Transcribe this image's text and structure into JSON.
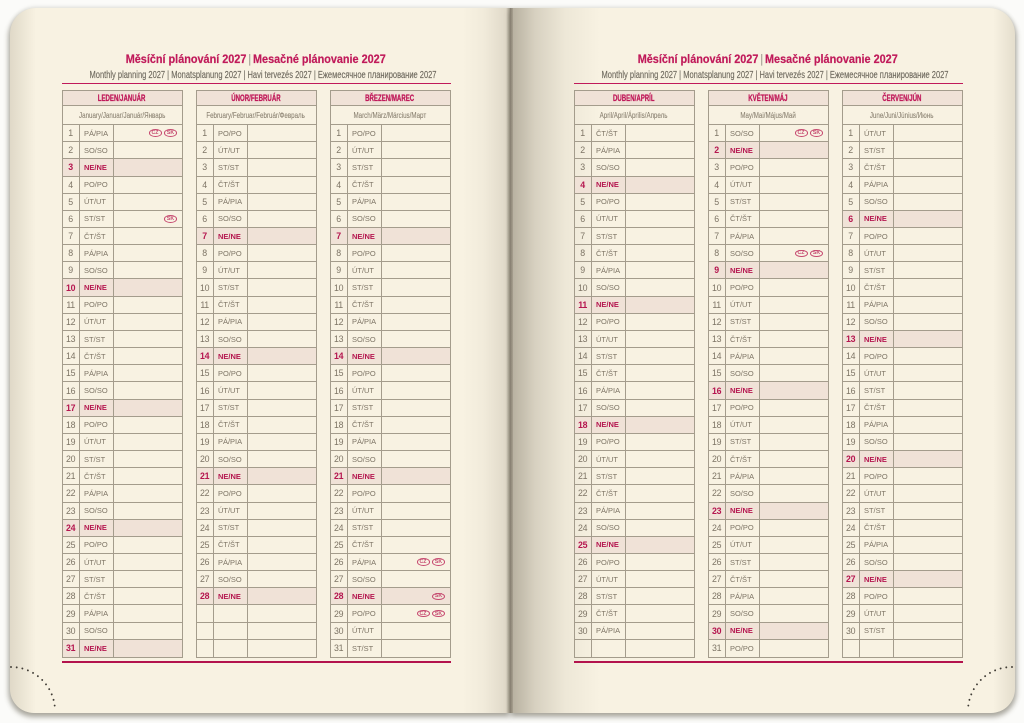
{
  "header": {
    "title_cs": "Měsíční plánování 2027",
    "title_sep": "|",
    "title_sk": "Mesačné plánovanie 2027",
    "subtitle": "Monthly planning 2027 | Monatsplanung 2027 | Havi tervezés 2027 | Ежемесячное планирование 2027"
  },
  "colors": {
    "accent_magenta": "#c01a5a",
    "sunday_red": "#b5164f",
    "page_cream": "#f8f2e2",
    "row_highlight": "#f0e2d7",
    "text_gray": "#7d7465",
    "border_gray": "#a49c8c",
    "badge_pink": "#c64a70",
    "dot_dark": "#413d36"
  },
  "months": [
    {
      "name": "LEDEN/JANUÁR",
      "subtitle": "January/Januar/Január/Январь",
      "days": [
        {
          "n": "1",
          "w": "PÁ/PIA",
          "badges": [
            "CZ",
            "SK"
          ]
        },
        {
          "n": "2",
          "w": "SO/SO"
        },
        {
          "n": "3",
          "w": "NE/NE",
          "sun": true
        },
        {
          "n": "4",
          "w": "PO/PO"
        },
        {
          "n": "5",
          "w": "ÚT/UT"
        },
        {
          "n": "6",
          "w": "ST/ST",
          "badges": [
            "SK"
          ]
        },
        {
          "n": "7",
          "w": "ČT/ŠT"
        },
        {
          "n": "8",
          "w": "PÁ/PIA"
        },
        {
          "n": "9",
          "w": "SO/SO"
        },
        {
          "n": "10",
          "w": "NE/NE",
          "sun": true
        },
        {
          "n": "11",
          "w": "PO/PO"
        },
        {
          "n": "12",
          "w": "ÚT/UT"
        },
        {
          "n": "13",
          "w": "ST/ST"
        },
        {
          "n": "14",
          "w": "ČT/ŠT"
        },
        {
          "n": "15",
          "w": "PÁ/PIA"
        },
        {
          "n": "16",
          "w": "SO/SO"
        },
        {
          "n": "17",
          "w": "NE/NE",
          "sun": true
        },
        {
          "n": "18",
          "w": "PO/PO"
        },
        {
          "n": "19",
          "w": "ÚT/UT"
        },
        {
          "n": "20",
          "w": "ST/ST"
        },
        {
          "n": "21",
          "w": "ČT/ŠT"
        },
        {
          "n": "22",
          "w": "PÁ/PIA"
        },
        {
          "n": "23",
          "w": "SO/SO"
        },
        {
          "n": "24",
          "w": "NE/NE",
          "sun": true
        },
        {
          "n": "25",
          "w": "PO/PO"
        },
        {
          "n": "26",
          "w": "ÚT/UT"
        },
        {
          "n": "27",
          "w": "ST/ST"
        },
        {
          "n": "28",
          "w": "ČT/ŠT"
        },
        {
          "n": "29",
          "w": "PÁ/PIA"
        },
        {
          "n": "30",
          "w": "SO/SO"
        },
        {
          "n": "31",
          "w": "NE/NE",
          "sun": true
        }
      ]
    },
    {
      "name": "ÚNOR/FEBRUÁR",
      "subtitle": "February/Februar/Február/Февраль",
      "days": [
        {
          "n": "1",
          "w": "PO/PO"
        },
        {
          "n": "2",
          "w": "ÚT/UT"
        },
        {
          "n": "3",
          "w": "ST/ST"
        },
        {
          "n": "4",
          "w": "ČT/ŠT"
        },
        {
          "n": "5",
          "w": "PÁ/PIA"
        },
        {
          "n": "6",
          "w": "SO/SO"
        },
        {
          "n": "7",
          "w": "NE/NE",
          "sun": true
        },
        {
          "n": "8",
          "w": "PO/PO"
        },
        {
          "n": "9",
          "w": "ÚT/UT"
        },
        {
          "n": "10",
          "w": "ST/ST"
        },
        {
          "n": "11",
          "w": "ČT/ŠT"
        },
        {
          "n": "12",
          "w": "PÁ/PIA"
        },
        {
          "n": "13",
          "w": "SO/SO"
        },
        {
          "n": "14",
          "w": "NE/NE",
          "sun": true
        },
        {
          "n": "15",
          "w": "PO/PO"
        },
        {
          "n": "16",
          "w": "ÚT/UT"
        },
        {
          "n": "17",
          "w": "ST/ST"
        },
        {
          "n": "18",
          "w": "ČT/ŠT"
        },
        {
          "n": "19",
          "w": "PÁ/PIA"
        },
        {
          "n": "20",
          "w": "SO/SO"
        },
        {
          "n": "21",
          "w": "NE/NE",
          "sun": true
        },
        {
          "n": "22",
          "w": "PO/PO"
        },
        {
          "n": "23",
          "w": "ÚT/UT"
        },
        {
          "n": "24",
          "w": "ST/ST"
        },
        {
          "n": "25",
          "w": "ČT/ŠT"
        },
        {
          "n": "26",
          "w": "PÁ/PIA"
        },
        {
          "n": "27",
          "w": "SO/SO"
        },
        {
          "n": "28",
          "w": "NE/NE",
          "sun": true
        },
        {
          "n": "",
          "w": ""
        },
        {
          "n": "",
          "w": ""
        },
        {
          "n": "",
          "w": ""
        }
      ]
    },
    {
      "name": "BŘEZEN/MAREC",
      "subtitle": "March/März/Március/Март",
      "days": [
        {
          "n": "1",
          "w": "PO/PO"
        },
        {
          "n": "2",
          "w": "ÚT/UT"
        },
        {
          "n": "3",
          "w": "ST/ST"
        },
        {
          "n": "4",
          "w": "ČT/ŠT"
        },
        {
          "n": "5",
          "w": "PÁ/PIA"
        },
        {
          "n": "6",
          "w": "SO/SO"
        },
        {
          "n": "7",
          "w": "NE/NE",
          "sun": true
        },
        {
          "n": "8",
          "w": "PO/PO"
        },
        {
          "n": "9",
          "w": "ÚT/UT"
        },
        {
          "n": "10",
          "w": "ST/ST"
        },
        {
          "n": "11",
          "w": "ČT/ŠT"
        },
        {
          "n": "12",
          "w": "PÁ/PIA"
        },
        {
          "n": "13",
          "w": "SO/SO"
        },
        {
          "n": "14",
          "w": "NE/NE",
          "sun": true
        },
        {
          "n": "15",
          "w": "PO/PO"
        },
        {
          "n": "16",
          "w": "ÚT/UT"
        },
        {
          "n": "17",
          "w": "ST/ST"
        },
        {
          "n": "18",
          "w": "ČT/ŠT"
        },
        {
          "n": "19",
          "w": "PÁ/PIA"
        },
        {
          "n": "20",
          "w": "SO/SO"
        },
        {
          "n": "21",
          "w": "NE/NE",
          "sun": true
        },
        {
          "n": "22",
          "w": "PO/PO"
        },
        {
          "n": "23",
          "w": "ÚT/UT"
        },
        {
          "n": "24",
          "w": "ST/ST"
        },
        {
          "n": "25",
          "w": "ČT/ŠT"
        },
        {
          "n": "26",
          "w": "PÁ/PIA",
          "badges": [
            "CZ",
            "SK"
          ]
        },
        {
          "n": "27",
          "w": "SO/SO"
        },
        {
          "n": "28",
          "w": "NE/NE",
          "sun": true,
          "badges": [
            "SK"
          ]
        },
        {
          "n": "29",
          "w": "PO/PO",
          "badges": [
            "CZ",
            "SK"
          ]
        },
        {
          "n": "30",
          "w": "ÚT/UT"
        },
        {
          "n": "31",
          "w": "ST/ST"
        }
      ]
    },
    {
      "name": "DUBEN/APRÍL",
      "subtitle": "April/April/Április/Апрель",
      "days": [
        {
          "n": "1",
          "w": "ČT/ŠT"
        },
        {
          "n": "2",
          "w": "PÁ/PIA"
        },
        {
          "n": "3",
          "w": "SO/SO"
        },
        {
          "n": "4",
          "w": "NE/NE",
          "sun": true
        },
        {
          "n": "5",
          "w": "PO/PO"
        },
        {
          "n": "6",
          "w": "ÚT/UT"
        },
        {
          "n": "7",
          "w": "ST/ST"
        },
        {
          "n": "8",
          "w": "ČT/ŠT"
        },
        {
          "n": "9",
          "w": "PÁ/PIA"
        },
        {
          "n": "10",
          "w": "SO/SO"
        },
        {
          "n": "11",
          "w": "NE/NE",
          "sun": true
        },
        {
          "n": "12",
          "w": "PO/PO"
        },
        {
          "n": "13",
          "w": "ÚT/UT"
        },
        {
          "n": "14",
          "w": "ST/ST"
        },
        {
          "n": "15",
          "w": "ČT/ŠT"
        },
        {
          "n": "16",
          "w": "PÁ/PIA"
        },
        {
          "n": "17",
          "w": "SO/SO"
        },
        {
          "n": "18",
          "w": "NE/NE",
          "sun": true
        },
        {
          "n": "19",
          "w": "PO/PO"
        },
        {
          "n": "20",
          "w": "ÚT/UT"
        },
        {
          "n": "21",
          "w": "ST/ST"
        },
        {
          "n": "22",
          "w": "ČT/ŠT"
        },
        {
          "n": "23",
          "w": "PÁ/PIA"
        },
        {
          "n": "24",
          "w": "SO/SO"
        },
        {
          "n": "25",
          "w": "NE/NE",
          "sun": true
        },
        {
          "n": "26",
          "w": "PO/PO"
        },
        {
          "n": "27",
          "w": "ÚT/UT"
        },
        {
          "n": "28",
          "w": "ST/ST"
        },
        {
          "n": "29",
          "w": "ČT/ŠT"
        },
        {
          "n": "30",
          "w": "PÁ/PIA"
        },
        {
          "n": "",
          "w": ""
        }
      ]
    },
    {
      "name": "KVĚTEN/MÁJ",
      "subtitle": "May/Mai/Május/Май",
      "days": [
        {
          "n": "1",
          "w": "SO/SO",
          "badges": [
            "CZ",
            "SK"
          ]
        },
        {
          "n": "2",
          "w": "NE/NE",
          "sun": true
        },
        {
          "n": "3",
          "w": "PO/PO"
        },
        {
          "n": "4",
          "w": "ÚT/UT"
        },
        {
          "n": "5",
          "w": "ST/ST"
        },
        {
          "n": "6",
          "w": "ČT/ŠT"
        },
        {
          "n": "7",
          "w": "PÁ/PIA"
        },
        {
          "n": "8",
          "w": "SO/SO",
          "badges": [
            "CZ",
            "SK"
          ]
        },
        {
          "n": "9",
          "w": "NE/NE",
          "sun": true
        },
        {
          "n": "10",
          "w": "PO/PO"
        },
        {
          "n": "11",
          "w": "ÚT/UT"
        },
        {
          "n": "12",
          "w": "ST/ST"
        },
        {
          "n": "13",
          "w": "ČT/ŠT"
        },
        {
          "n": "14",
          "w": "PÁ/PIA"
        },
        {
          "n": "15",
          "w": "SO/SO"
        },
        {
          "n": "16",
          "w": "NE/NE",
          "sun": true
        },
        {
          "n": "17",
          "w": "PO/PO"
        },
        {
          "n": "18",
          "w": "ÚT/UT"
        },
        {
          "n": "19",
          "w": "ST/ST"
        },
        {
          "n": "20",
          "w": "ČT/ŠT"
        },
        {
          "n": "21",
          "w": "PÁ/PIA"
        },
        {
          "n": "22",
          "w": "SO/SO"
        },
        {
          "n": "23",
          "w": "NE/NE",
          "sun": true
        },
        {
          "n": "24",
          "w": "PO/PO"
        },
        {
          "n": "25",
          "w": "ÚT/UT"
        },
        {
          "n": "26",
          "w": "ST/ST"
        },
        {
          "n": "27",
          "w": "ČT/ŠT"
        },
        {
          "n": "28",
          "w": "PÁ/PIA"
        },
        {
          "n": "29",
          "w": "SO/SO"
        },
        {
          "n": "30",
          "w": "NE/NE",
          "sun": true
        },
        {
          "n": "31",
          "w": "PO/PO"
        }
      ]
    },
    {
      "name": "ČERVEN/JÚN",
      "subtitle": "June/Juni/Június/Июнь",
      "days": [
        {
          "n": "1",
          "w": "ÚT/UT"
        },
        {
          "n": "2",
          "w": "ST/ST"
        },
        {
          "n": "3",
          "w": "ČT/ŠT"
        },
        {
          "n": "4",
          "w": "PÁ/PIA"
        },
        {
          "n": "5",
          "w": "SO/SO"
        },
        {
          "n": "6",
          "w": "NE/NE",
          "sun": true
        },
        {
          "n": "7",
          "w": "PO/PO"
        },
        {
          "n": "8",
          "w": "ÚT/UT"
        },
        {
          "n": "9",
          "w": "ST/ST"
        },
        {
          "n": "10",
          "w": "ČT/ŠT"
        },
        {
          "n": "11",
          "w": "PÁ/PIA"
        },
        {
          "n": "12",
          "w": "SO/SO"
        },
        {
          "n": "13",
          "w": "NE/NE",
          "sun": true
        },
        {
          "n": "14",
          "w": "PO/PO"
        },
        {
          "n": "15",
          "w": "ÚT/UT"
        },
        {
          "n": "16",
          "w": "ST/ST"
        },
        {
          "n": "17",
          "w": "ČT/ŠT"
        },
        {
          "n": "18",
          "w": "PÁ/PIA"
        },
        {
          "n": "19",
          "w": "SO/SO"
        },
        {
          "n": "20",
          "w": "NE/NE",
          "sun": true
        },
        {
          "n": "21",
          "w": "PO/PO"
        },
        {
          "n": "22",
          "w": "ÚT/UT"
        },
        {
          "n": "23",
          "w": "ST/ST"
        },
        {
          "n": "24",
          "w": "ČT/ŠT"
        },
        {
          "n": "25",
          "w": "PÁ/PIA"
        },
        {
          "n": "26",
          "w": "SO/SO"
        },
        {
          "n": "27",
          "w": "NE/NE",
          "sun": true
        },
        {
          "n": "28",
          "w": "PO/PO"
        },
        {
          "n": "29",
          "w": "ÚT/UT"
        },
        {
          "n": "30",
          "w": "ST/ST"
        },
        {
          "n": "",
          "w": ""
        }
      ]
    }
  ]
}
